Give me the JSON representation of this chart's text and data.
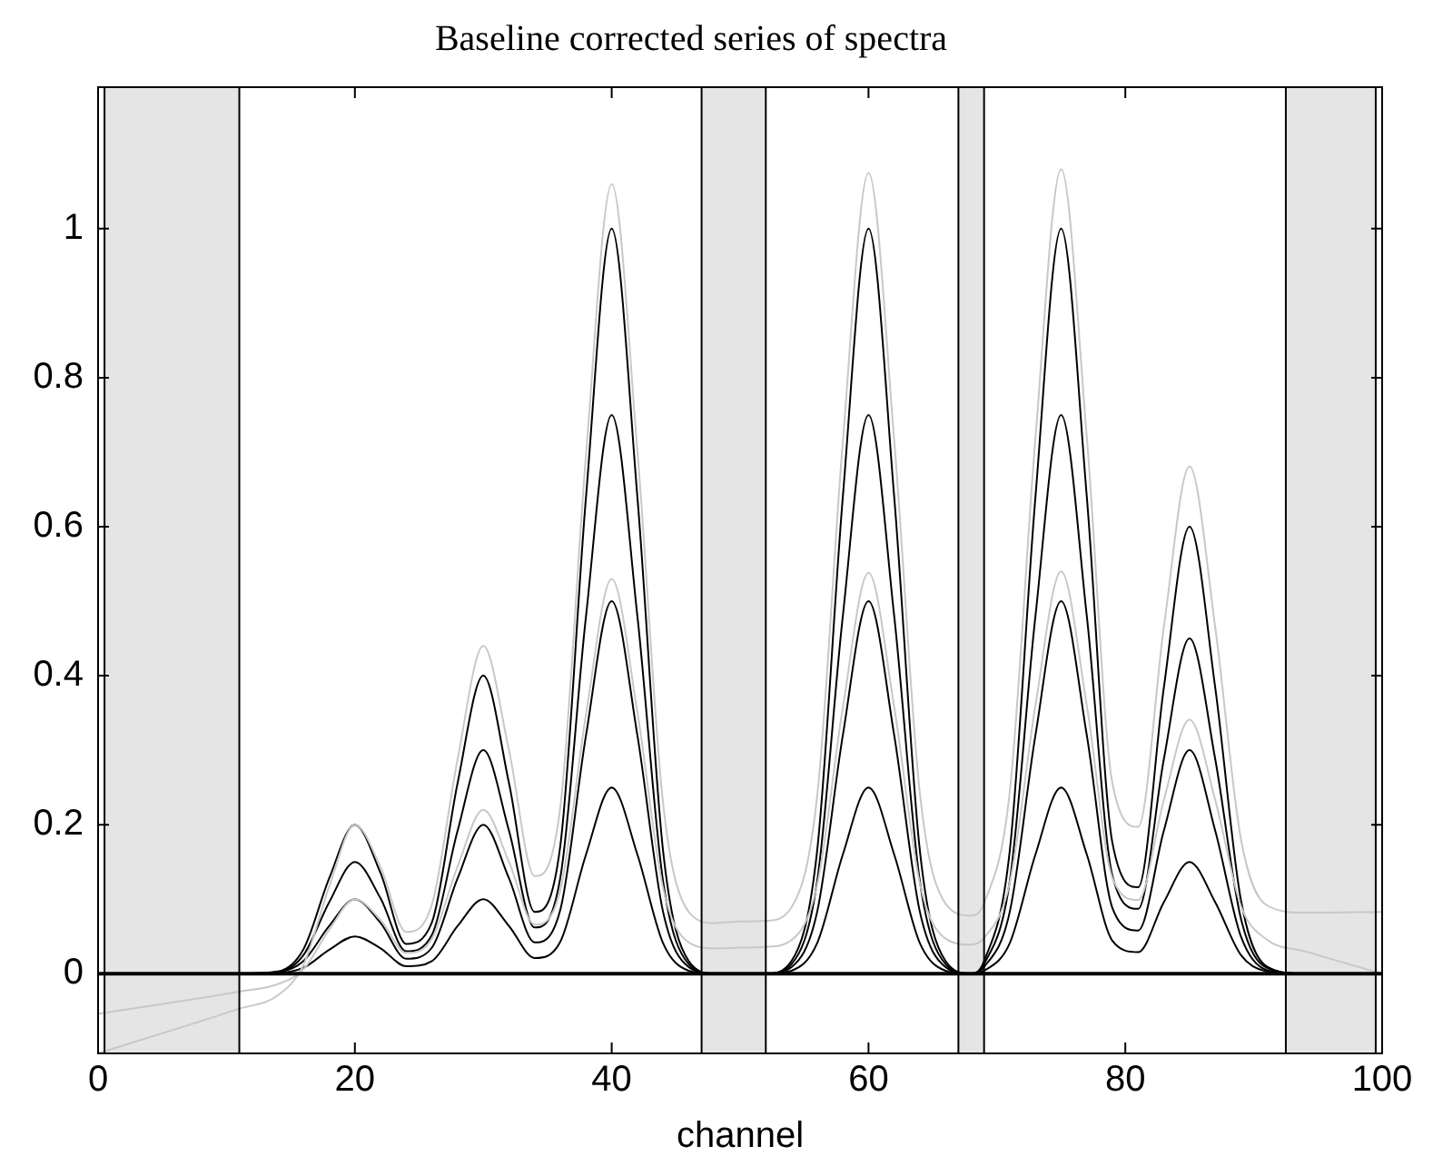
{
  "chart_data": {
    "type": "line",
    "title": "Baseline corrected series of spectra",
    "xlabel": "channel",
    "x": [
      0,
      11,
      14,
      16,
      18,
      20,
      22,
      24,
      26,
      28,
      30,
      32,
      34,
      36,
      38,
      40,
      42,
      44,
      46,
      48,
      50,
      52,
      54,
      56,
      58,
      60,
      62,
      64,
      66,
      68,
      69,
      71,
      73,
      75,
      77,
      79,
      81,
      83,
      85,
      87,
      89,
      91,
      94,
      100
    ],
    "xlim": [
      0,
      100
    ],
    "xticks": [
      0,
      20,
      40,
      60,
      80,
      100
    ],
    "ylim": [
      -0.107,
      1.19
    ],
    "yticks": [
      0,
      0.2,
      0.4,
      0.6,
      0.8,
      1
    ],
    "grid": false,
    "legend": false,
    "marker": "none",
    "line_style": "solid",
    "bands": [
      {
        "axis": "x",
        "from": 0.5,
        "to": 11,
        "color": "#e5e5e5"
      },
      {
        "axis": "x",
        "from": 47,
        "to": 52,
        "color": "#e5e5e5"
      },
      {
        "axis": "x",
        "from": 67,
        "to": 69,
        "color": "#e5e5e5"
      },
      {
        "axis": "x",
        "from": 92.5,
        "to": 99.5,
        "color": "#e5e5e5"
      }
    ],
    "ref_lines": [
      {
        "axis": "y",
        "value": 0,
        "color": "#000000"
      }
    ],
    "series": [
      {
        "color": "#c8c8c8",
        "values": [
          -0.107,
          -0.047,
          -0.029,
          0.012,
          0.117,
          0.2,
          0.143,
          0.056,
          0.093,
          0.288,
          0.44,
          0.3,
          0.131,
          0.224,
          0.696,
          1.06,
          0.702,
          0.229,
          0.083,
          0.068,
          0.07,
          0.071,
          0.089,
          0.238,
          0.714,
          1.075,
          0.716,
          0.242,
          0.094,
          0.078,
          0.095,
          0.244,
          0.719,
          1.08,
          0.72,
          0.255,
          0.197,
          0.465,
          0.681,
          0.465,
          0.181,
          0.092,
          0.082,
          0.083
        ]
      },
      {
        "color": "#c8c8c8",
        "values": [
          -0.054,
          -0.024,
          -0.014,
          0.006,
          0.059,
          0.1,
          0.072,
          0.028,
          0.047,
          0.144,
          0.22,
          0.15,
          0.066,
          0.112,
          0.348,
          0.53,
          0.351,
          0.115,
          0.042,
          0.034,
          0.035,
          0.036,
          0.045,
          0.119,
          0.357,
          0.538,
          0.358,
          0.121,
          0.047,
          0.039,
          0.048,
          0.122,
          0.36,
          0.54,
          0.36,
          0.128,
          0.099,
          0.233,
          0.341,
          0.233,
          0.091,
          0.046,
          0.03,
          0
        ]
      },
      {
        "color": "#000000",
        "values": [
          0,
          0,
          0.003,
          0.033,
          0.128,
          0.2,
          0.135,
          0.04,
          0.069,
          0.256,
          0.4,
          0.256,
          0.083,
          0.172,
          0.64,
          1,
          0.64,
          0.165,
          0.017,
          0,
          0,
          0,
          0.017,
          0.165,
          0.64,
          1,
          0.64,
          0.165,
          0.017,
          0,
          0.017,
          0.165,
          0.64,
          1,
          0.64,
          0.175,
          0.116,
          0.384,
          0.6,
          0.384,
          0.099,
          0.01,
          0,
          0
        ]
      },
      {
        "color": "#000000",
        "values": [
          0,
          0,
          0.002,
          0.025,
          0.096,
          0.15,
          0.101,
          0.03,
          0.052,
          0.192,
          0.3,
          0.192,
          0.062,
          0.129,
          0.48,
          0.75,
          0.48,
          0.124,
          0.013,
          0,
          0,
          0,
          0.013,
          0.124,
          0.48,
          0.75,
          0.48,
          0.124,
          0.013,
          0,
          0.013,
          0.124,
          0.48,
          0.75,
          0.48,
          0.131,
          0.087,
          0.288,
          0.45,
          0.288,
          0.074,
          0.008,
          0,
          0
        ]
      },
      {
        "color": "#000000",
        "values": [
          0,
          0,
          0.002,
          0.017,
          0.064,
          0.1,
          0.068,
          0.02,
          0.035,
          0.128,
          0.2,
          0.128,
          0.042,
          0.086,
          0.32,
          0.5,
          0.32,
          0.083,
          0.009,
          0,
          0,
          0,
          0.009,
          0.083,
          0.32,
          0.5,
          0.32,
          0.083,
          0.009,
          0,
          0.009,
          0.083,
          0.32,
          0.5,
          0.32,
          0.088,
          0.058,
          0.192,
          0.3,
          0.192,
          0.05,
          0.005,
          0,
          0
        ]
      },
      {
        "color": "#000000",
        "values": [
          0,
          0,
          0.001,
          0.008,
          0.032,
          0.05,
          0.034,
          0.01,
          0.017,
          0.064,
          0.1,
          0.064,
          0.021,
          0.043,
          0.16,
          0.25,
          0.16,
          0.041,
          0.004,
          0,
          0,
          0,
          0.004,
          0.041,
          0.16,
          0.25,
          0.16,
          0.041,
          0.004,
          0,
          0.004,
          0.041,
          0.16,
          0.25,
          0.16,
          0.044,
          0.029,
          0.096,
          0.15,
          0.096,
          0.025,
          0.003,
          0,
          0
        ]
      }
    ]
  }
}
